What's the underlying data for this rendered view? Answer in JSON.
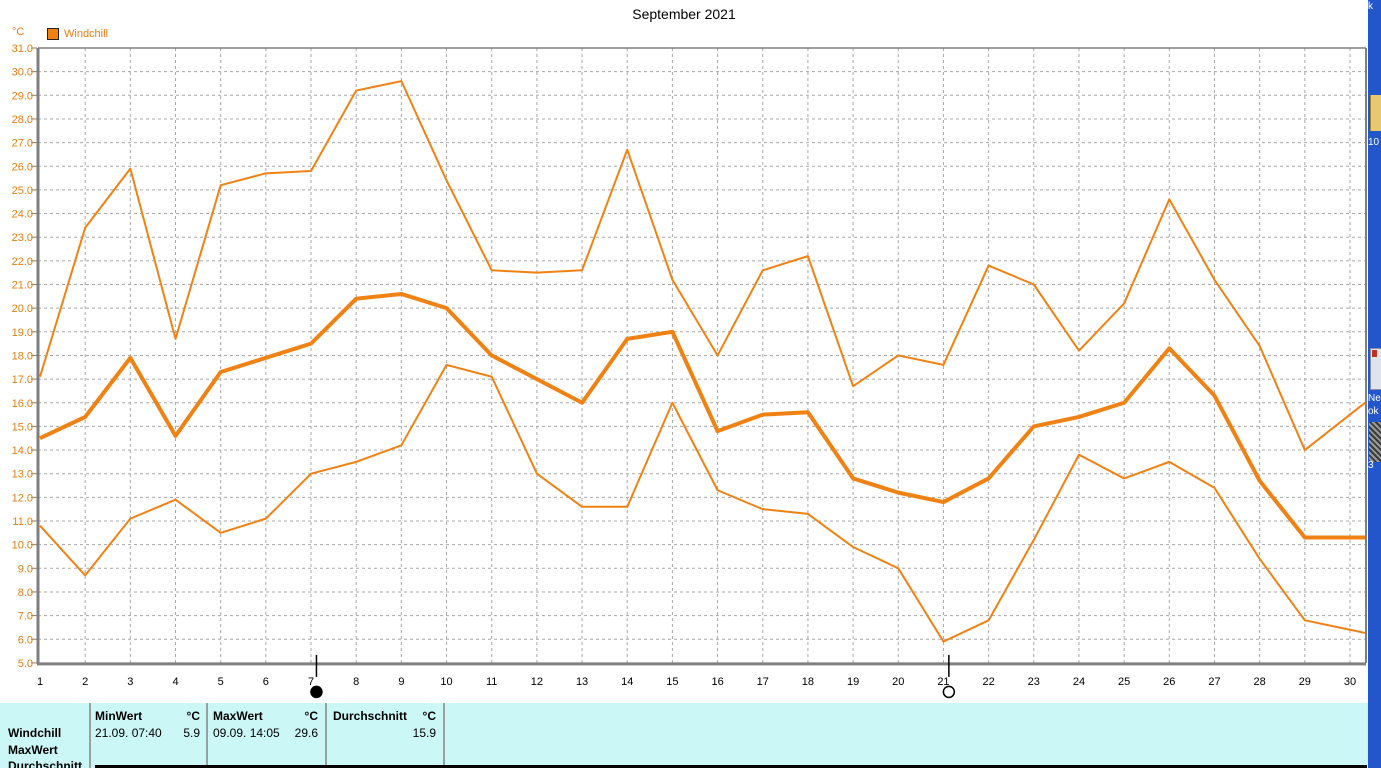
{
  "colors": {
    "accent_orange": "#f08214",
    "label_orange": "#e87d0e",
    "grid_gray": "#a8a8a8",
    "axis_gray": "#7f7f7f",
    "table_bg": "#ccf7f7",
    "desktop_blue": "#2456cb"
  },
  "chart_data": {
    "type": "line",
    "title": "September 2021",
    "unit_label": "°C",
    "xlabel": "",
    "ylabel": "°C",
    "ylim": [
      5.0,
      31.0
    ],
    "grid": true,
    "legend_position": "top-left",
    "legend": [
      {
        "label": "Windchill",
        "color": "#f08214"
      }
    ],
    "x": [
      1,
      2,
      3,
      4,
      5,
      6,
      7,
      8,
      9,
      10,
      11,
      12,
      13,
      14,
      15,
      16,
      17,
      18,
      19,
      20,
      21,
      22,
      23,
      24,
      25,
      26,
      27,
      28,
      29,
      30
    ],
    "x_tick_labels": [
      "1",
      "2",
      "3",
      "4",
      "5",
      "6",
      "7",
      "8",
      "9",
      "10",
      "11",
      "12",
      "13",
      "14",
      "15",
      "16",
      "17",
      "18",
      "19",
      "20",
      "21",
      "22",
      "23",
      "24",
      "25",
      "26",
      "27",
      "28",
      "29",
      "30"
    ],
    "y_tick_labels": [
      "31.0",
      "30.0",
      "29.0",
      "28.0",
      "27.0",
      "26.0",
      "25.0",
      "24.0",
      "23.0",
      "22.0",
      "21.0",
      "20.0",
      "19.0",
      "18.0",
      "17.0",
      "16.0",
      "15.0",
      "14.0",
      "13.0",
      "12.0",
      "11.0",
      "10.0",
      "9.0",
      "8.0",
      "7.0",
      "6.0",
      "5.0"
    ],
    "series": [
      {
        "name": "windchill-daily-max",
        "thick": false,
        "values": [
          17.1,
          23.4,
          25.9,
          18.7,
          25.2,
          25.7,
          25.8,
          29.2,
          29.6,
          25.4,
          21.6,
          21.5,
          21.6,
          26.7,
          21.2,
          18.0,
          21.6,
          22.2,
          16.7,
          18.0,
          17.6,
          21.8,
          21.0,
          18.2,
          20.2,
          24.6,
          21.2,
          18.4,
          14.0,
          15.5
        ]
      },
      {
        "name": "windchill-daily-mean",
        "thick": true,
        "values": [
          14.5,
          15.4,
          17.9,
          14.6,
          17.3,
          17.9,
          18.5,
          20.4,
          20.6,
          20.0,
          18.0,
          17.0,
          16.0,
          18.7,
          19.0,
          14.8,
          15.5,
          15.6,
          12.8,
          12.2,
          11.8,
          12.8,
          15.0,
          15.4,
          16.0,
          18.3,
          16.3,
          12.7,
          10.3,
          10.3
        ]
      },
      {
        "name": "windchill-daily-min",
        "thick": false,
        "values": [
          10.8,
          8.7,
          11.1,
          11.9,
          10.5,
          11.1,
          13.0,
          13.5,
          14.2,
          17.6,
          17.1,
          13.0,
          11.6,
          11.6,
          16.0,
          12.3,
          11.5,
          11.3,
          9.9,
          9.0,
          5.9,
          6.8,
          10.2,
          13.8,
          12.8,
          13.5,
          12.4,
          9.4,
          6.8,
          6.4
        ]
      }
    ],
    "moon_markers": [
      {
        "x": 7.12,
        "phase": "new-moon"
      },
      {
        "x": 21.12,
        "phase": "full-moon"
      }
    ]
  },
  "summary_table": {
    "row_labels": [
      "Windchill",
      "MaxWert",
      "Durchschnitt"
    ],
    "columns": [
      {
        "header": "MinWert",
        "unit": "°C",
        "datetime": "21.09.  07:40",
        "value": "5.9"
      },
      {
        "header": "MaxWert",
        "unit": "°C",
        "datetime": "09.09.  14:05",
        "value": "29.6"
      },
      {
        "header": "Durchschnitt",
        "unit": "°C",
        "datetime": "",
        "value": "15.9"
      }
    ]
  },
  "desktop_fragments": {
    "top_text": "k",
    "folder_label": "10",
    "doc_label_line1": "Ne",
    "doc_label_line2": "ok",
    "icon_label": "3"
  }
}
